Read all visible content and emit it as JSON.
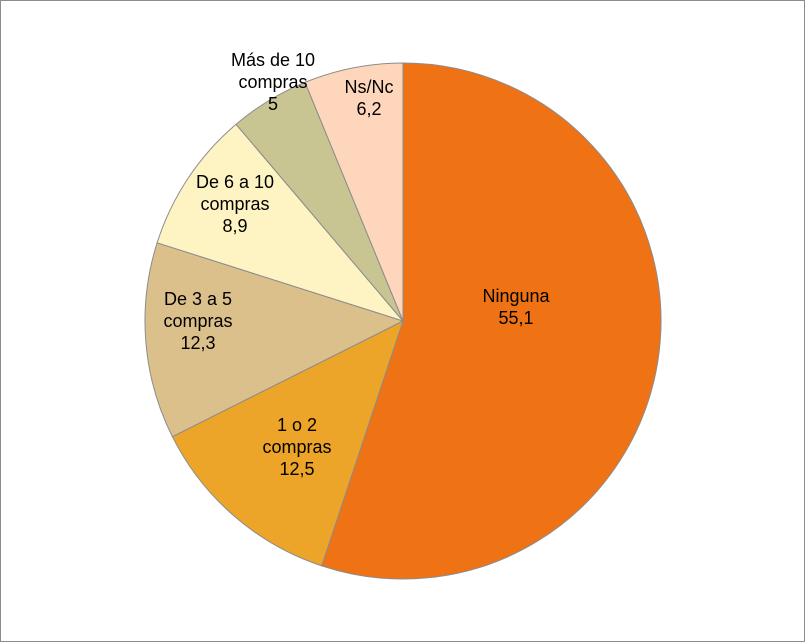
{
  "chart_data": {
    "type": "pie",
    "start_angle_deg": 0,
    "direction": "clockwise",
    "slices": [
      {
        "label": [
          "Ninguna"
        ],
        "value": 55.1,
        "value_text": "55,1",
        "color": "#ef7215"
      },
      {
        "label": [
          "1 o 2",
          "compras"
        ],
        "value": 12.5,
        "value_text": "12,5",
        "color": "#eca429"
      },
      {
        "label": [
          "De 3 a 5",
          "compras"
        ],
        "value": 12.3,
        "value_text": "12,3",
        "color": "#dcc08c"
      },
      {
        "label": [
          "De 6 a 10",
          "compras"
        ],
        "value": 8.9,
        "value_text": "8,9",
        "color": "#fef3c2"
      },
      {
        "label": [
          "Más de 10",
          "compras"
        ],
        "value": 5,
        "value_text": "5",
        "color": "#c9c593"
      },
      {
        "label": [
          "Ns/Nc"
        ],
        "value": 6.2,
        "value_text": "6,2",
        "color": "#fdd6bb"
      }
    ]
  }
}
